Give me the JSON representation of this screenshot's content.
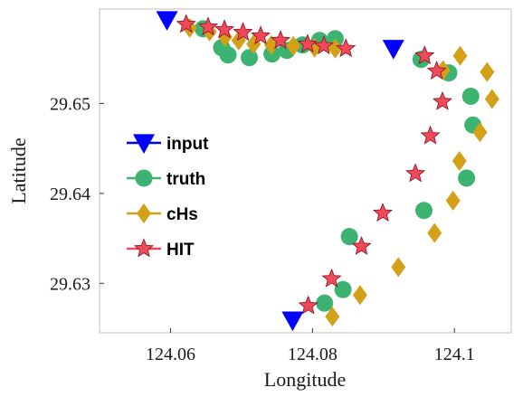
{
  "chart_data": {
    "type": "scatter",
    "xlabel": "Longitude",
    "ylabel": "Latitude",
    "xlim": [
      124.05,
      124.108
    ],
    "ylim": [
      29.6245,
      29.6605
    ],
    "xticks": [
      124.06,
      124.08,
      124.1
    ],
    "xtick_labels": [
      "124.06",
      "124.08",
      "124.1"
    ],
    "yticks": [
      29.63,
      29.64,
      29.65
    ],
    "ytick_labels": [
      "29.63",
      "29.64",
      "29.65"
    ],
    "grid": false,
    "legend_position": "left",
    "series": [
      {
        "name": "input",
        "marker": "triangle-down",
        "color": "#0000ff",
        "x": [
          124.0595,
          124.0914,
          124.0772
        ],
        "y": [
          29.6593,
          29.6561,
          29.6259
        ]
      },
      {
        "name": "truth",
        "marker": "circle",
        "color": "#3cb371",
        "x": [
          124.0646,
          124.0672,
          124.0681,
          124.0711,
          124.0743,
          124.0764,
          124.0786,
          124.081,
          124.0832,
          124.0953,
          124.0992,
          124.1023,
          124.1026,
          124.1017,
          124.0957,
          124.0852,
          124.0843,
          124.0817
        ],
        "y": [
          29.6583,
          29.6562,
          29.6554,
          29.6551,
          29.6555,
          29.6559,
          29.6565,
          29.657,
          29.6572,
          29.6549,
          29.6534,
          29.6508,
          29.6476,
          29.6417,
          29.6381,
          29.6352,
          29.6293,
          29.6278
        ]
      },
      {
        "name": "cHs",
        "marker": "diamond",
        "color": "#d4a017",
        "x": [
          124.0627,
          124.0655,
          124.0677,
          124.0696,
          124.0717,
          124.0742,
          124.0773,
          124.0803,
          124.0832,
          124.1008,
          124.0984,
          124.1046,
          124.1053,
          124.1036,
          124.1007,
          124.0998,
          124.0972,
          124.0921,
          124.0867,
          124.0828
        ],
        "y": [
          29.6584,
          29.658,
          29.6574,
          29.657,
          29.6566,
          29.6565,
          29.6564,
          29.6562,
          29.6561,
          29.6553,
          29.6537,
          29.6535,
          29.6505,
          29.6468,
          29.6436,
          29.6392,
          29.6356,
          29.6318,
          29.6287,
          29.6263
        ]
      },
      {
        "name": "HIT",
        "marker": "star",
        "color": "#f04a5a",
        "x": [
          124.0622,
          124.0653,
          124.0676,
          124.0702,
          124.0727,
          124.0755,
          124.0793,
          124.0816,
          124.0847,
          124.0958,
          124.0975,
          124.0983,
          124.0966,
          124.0945,
          124.0899,
          124.0869,
          124.0827,
          124.0794
        ],
        "y": [
          29.6588,
          29.6585,
          29.6582,
          29.6579,
          29.6575,
          29.657,
          29.6566,
          29.6564,
          29.6561,
          29.6553,
          29.6536,
          29.6502,
          29.6464,
          29.6422,
          29.6378,
          29.6341,
          29.6305,
          29.6275
        ]
      }
    ]
  }
}
